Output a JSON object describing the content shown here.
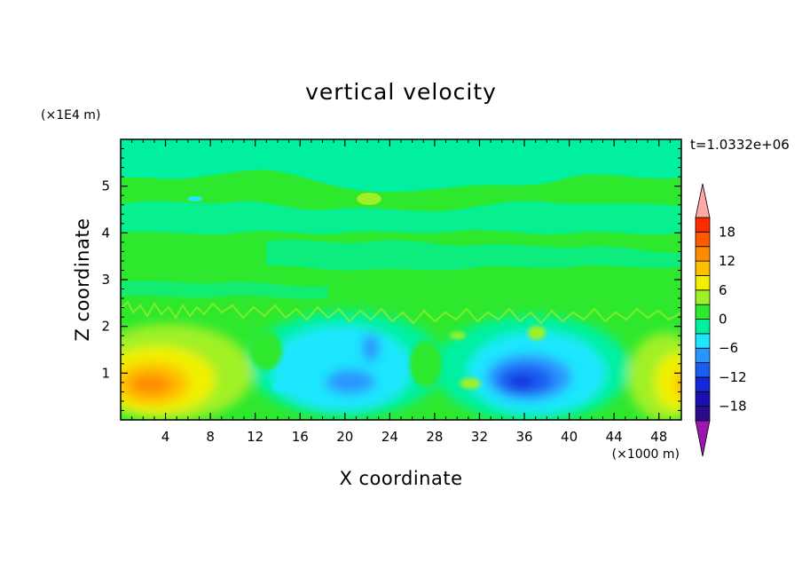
{
  "chart_data": {
    "type": "heatmap",
    "title": "vertical velocity",
    "xlabel": "X coordinate",
    "ylabel": "Z coordinate",
    "x_unit": "(×1000 m)",
    "y_unit": "(×1E4 m)",
    "time_label": "t=1.0332e+06",
    "xlim": [
      0,
      50
    ],
    "ylim": [
      0,
      6
    ],
    "x_ticks": [
      4,
      8,
      12,
      16,
      20,
      24,
      28,
      32,
      36,
      40,
      44,
      48
    ],
    "y_ticks": [
      1,
      2,
      3,
      4,
      5
    ],
    "colorbar": {
      "levels": [
        -21,
        -18,
        -15,
        -12,
        -9,
        -6,
        -3,
        0,
        3,
        6,
        9,
        12,
        15,
        18,
        21
      ],
      "tick_values": [
        -18,
        -12,
        -6,
        0,
        6,
        12,
        18
      ],
      "tick_labels": [
        "−18",
        "−12",
        "−6",
        "0",
        "6",
        "12",
        "18"
      ],
      "colors": [
        "#2a0a8a",
        "#1a0fb0",
        "#1428d8",
        "#1a5cf0",
        "#2b95ff",
        "#1ee6ff",
        "#00f0a0",
        "#2ee82e",
        "#a0f028",
        "#f0f000",
        "#ffc000",
        "#ff8c00",
        "#ff5a00",
        "#ff2a00"
      ],
      "under_color": "#9a18b0",
      "over_color": "#ffa8a8"
    },
    "features": [
      {
        "x": 3.5,
        "z": 0.75,
        "value": 13
      },
      {
        "x": 48.5,
        "z": 0.9,
        "value": 9
      },
      {
        "x": 36,
        "z": 0.8,
        "value": -13
      },
      {
        "x": 20,
        "z": 0.8,
        "value": -8
      },
      {
        "x": 22.5,
        "z": 1.7,
        "value": -7
      },
      {
        "x": 30.5,
        "z": 0.75,
        "value": 3
      },
      {
        "x": 21.5,
        "z": 4.7,
        "value": 3
      }
    ]
  }
}
